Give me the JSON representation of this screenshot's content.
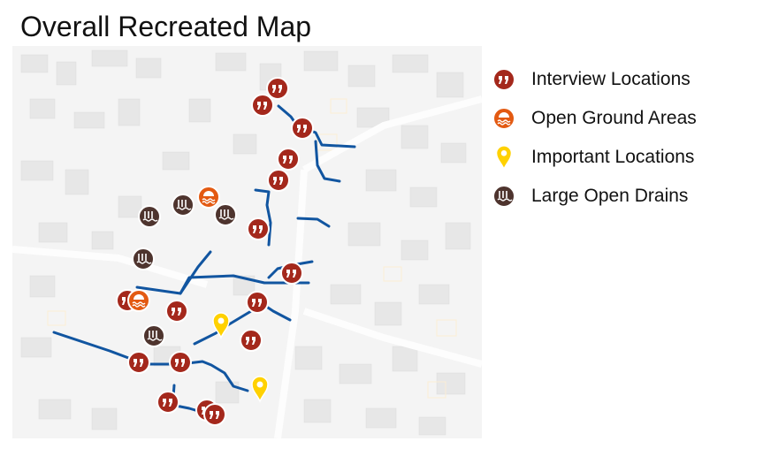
{
  "title": "Overall Recreated Map",
  "legend": [
    {
      "label": "Interview Locations",
      "icon": "quote-marker-icon",
      "color": "#a4281c"
    },
    {
      "label": "Open Ground Areas",
      "icon": "water-wave-marker-icon",
      "color": "#e35a12"
    },
    {
      "label": "Important Locations",
      "icon": "pin-marker-icon",
      "color": "#ffd100"
    },
    {
      "label": "Large Open Drains",
      "icon": "drain-marker-icon",
      "color": "#4e342e"
    }
  ],
  "colors": {
    "drain_line": "#1155a0",
    "map_bg": "#f3f3f3",
    "building": "#e6e6e6",
    "road": "#fafafa"
  }
}
